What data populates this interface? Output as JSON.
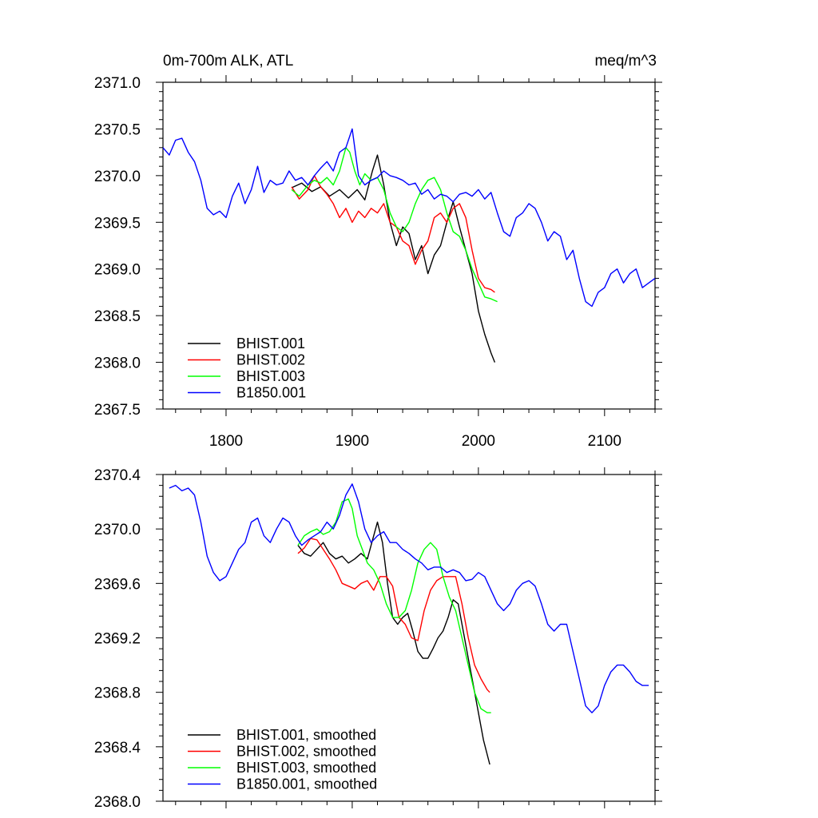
{
  "figure": {
    "left_title": "0m-700m ALK, ATL",
    "right_title": "meq/m^3"
  },
  "colors": {
    "BHIST.001": "#000000",
    "BHIST.002": "#ff0000",
    "BHIST.003": "#00ff00",
    "B1850.001": "#0000ff"
  },
  "chart_data": [
    {
      "type": "line",
      "title": "0m-700m ALK, ATL",
      "units": "meq/m^3",
      "xlim": [
        1750,
        2140
      ],
      "ylim": [
        2367.5,
        2371.0
      ],
      "x_ticks": [
        1800,
        1900,
        2000,
        2100
      ],
      "x_tick_labels": [
        "1800",
        "1900",
        "2000",
        "2100"
      ],
      "y_ticks": [
        2367.5,
        2368.0,
        2368.5,
        2369.0,
        2369.5,
        2370.0,
        2370.5,
        2371.0
      ],
      "y_tick_labels": [
        "2367.5",
        "2368.0",
        "2368.5",
        "2369.0",
        "2369.5",
        "2370.0",
        "2370.5",
        "2371.0"
      ],
      "legend_position": "lower-left",
      "series": [
        {
          "name": "BHIST.001",
          "color": "#000000",
          "x": [
            1852,
            1860,
            1868,
            1875,
            1882,
            1890,
            1897,
            1904,
            1910,
            1916,
            1920,
            1925,
            1930,
            1935,
            1940,
            1945,
            1950,
            1955,
            1960,
            1965,
            1970,
            1975,
            1980,
            1985,
            1990,
            1995,
            2000,
            2005,
            2010,
            2013
          ],
          "y": [
            2369.87,
            2369.92,
            2369.83,
            2369.88,
            2369.78,
            2369.85,
            2369.76,
            2369.85,
            2369.74,
            2370.05,
            2370.22,
            2369.9,
            2369.5,
            2369.25,
            2369.45,
            2369.38,
            2369.1,
            2369.25,
            2368.95,
            2369.15,
            2369.25,
            2369.5,
            2369.72,
            2369.45,
            2369.2,
            2368.95,
            2368.55,
            2368.3,
            2368.1,
            2368.0
          ]
        },
        {
          "name": "BHIST.002",
          "color": "#ff0000",
          "x": [
            1852,
            1858,
            1865,
            1870,
            1875,
            1880,
            1885,
            1890,
            1895,
            1900,
            1905,
            1910,
            1915,
            1920,
            1925,
            1930,
            1935,
            1940,
            1945,
            1950,
            1955,
            1960,
            1965,
            1970,
            1975,
            1980,
            1985,
            1990,
            1995,
            2000,
            2005,
            2010,
            2013
          ],
          "y": [
            2369.88,
            2369.75,
            2369.85,
            2370.0,
            2369.88,
            2369.8,
            2369.7,
            2369.55,
            2369.65,
            2369.5,
            2369.62,
            2369.55,
            2369.65,
            2369.6,
            2369.7,
            2369.5,
            2369.45,
            2369.3,
            2369.25,
            2369.05,
            2369.2,
            2369.3,
            2369.55,
            2369.6,
            2369.5,
            2369.65,
            2369.7,
            2369.55,
            2369.2,
            2368.9,
            2368.8,
            2368.78,
            2368.75
          ]
        },
        {
          "name": "BHIST.003",
          "color": "#00ff00",
          "x": [
            1852,
            1858,
            1865,
            1870,
            1875,
            1880,
            1885,
            1890,
            1895,
            1898,
            1902,
            1906,
            1910,
            1915,
            1920,
            1925,
            1930,
            1935,
            1940,
            1945,
            1950,
            1955,
            1960,
            1965,
            1970,
            1975,
            1980,
            1985,
            1990,
            1995,
            2000,
            2005,
            2010,
            2015
          ],
          "y": [
            2369.85,
            2369.78,
            2369.9,
            2369.95,
            2369.92,
            2369.98,
            2369.9,
            2370.05,
            2370.3,
            2370.25,
            2370.05,
            2369.9,
            2370.02,
            2369.95,
            2369.98,
            2369.85,
            2369.6,
            2369.45,
            2369.4,
            2369.5,
            2369.7,
            2369.85,
            2369.95,
            2369.98,
            2369.85,
            2369.6,
            2369.4,
            2369.35,
            2369.2,
            2369.0,
            2368.85,
            2368.7,
            2368.68,
            2368.65
          ]
        },
        {
          "name": "B1850.001",
          "color": "#0000ff",
          "x": [
            1750,
            1755,
            1760,
            1765,
            1770,
            1775,
            1780,
            1785,
            1790,
            1795,
            1800,
            1805,
            1810,
            1815,
            1820,
            1825,
            1830,
            1835,
            1840,
            1845,
            1850,
            1855,
            1860,
            1865,
            1870,
            1875,
            1880,
            1885,
            1890,
            1895,
            1900,
            1905,
            1910,
            1915,
            1920,
            1925,
            1930,
            1935,
            1940,
            1945,
            1950,
            1955,
            1960,
            1965,
            1970,
            1975,
            1980,
            1985,
            1990,
            1995,
            2000,
            2005,
            2010,
            2015,
            2020,
            2025,
            2030,
            2035,
            2040,
            2045,
            2050,
            2055,
            2060,
            2065,
            2070,
            2075,
            2080,
            2085,
            2090,
            2095,
            2100,
            2105,
            2110,
            2115,
            2120,
            2125,
            2130,
            2135,
            2140
          ],
          "y": [
            2370.3,
            2370.22,
            2370.38,
            2370.4,
            2370.25,
            2370.15,
            2369.95,
            2369.65,
            2369.58,
            2369.62,
            2369.55,
            2369.78,
            2369.92,
            2369.7,
            2369.85,
            2370.1,
            2369.82,
            2369.95,
            2369.9,
            2369.92,
            2370.05,
            2369.95,
            2369.98,
            2369.9,
            2370.0,
            2370.08,
            2370.15,
            2370.05,
            2370.25,
            2370.3,
            2370.5,
            2370.0,
            2369.9,
            2369.95,
            2369.98,
            2370.05,
            2370.0,
            2369.98,
            2369.95,
            2369.9,
            2369.92,
            2369.8,
            2369.85,
            2369.75,
            2369.8,
            2369.78,
            2369.72,
            2369.8,
            2369.82,
            2369.78,
            2369.85,
            2369.75,
            2369.82,
            2369.6,
            2369.4,
            2369.35,
            2369.55,
            2369.6,
            2369.7,
            2369.65,
            2369.5,
            2369.3,
            2369.4,
            2369.35,
            2369.1,
            2369.2,
            2368.9,
            2368.65,
            2368.6,
            2368.75,
            2368.8,
            2368.95,
            2369.0,
            2368.85,
            2368.95,
            2369.0,
            2368.8,
            2368.85,
            2368.9
          ]
        }
      ]
    },
    {
      "type": "line",
      "title": "",
      "xlim": [
        1750,
        2140
      ],
      "ylim": [
        2368.0,
        2370.4
      ],
      "x_ticks": [
        1800,
        1900,
        2000,
        2100
      ],
      "x_tick_labels": [],
      "y_ticks": [
        2368.0,
        2368.4,
        2368.8,
        2369.2,
        2369.6,
        2370.0,
        2370.4
      ],
      "y_tick_labels": [
        "2368.0",
        "2368.4",
        "2368.8",
        "2369.2",
        "2369.6",
        "2370.0",
        "2370.4"
      ],
      "legend_position": "lower-left",
      "series": [
        {
          "name": "BHIST.001, smoothed",
          "color": "#000000",
          "x": [
            1857,
            1862,
            1867,
            1872,
            1877,
            1882,
            1887,
            1892,
            1897,
            1902,
            1907,
            1912,
            1917,
            1920,
            1924,
            1928,
            1932,
            1936,
            1940,
            1944,
            1948,
            1952,
            1956,
            1960,
            1964,
            1968,
            1972,
            1976,
            1980,
            1984,
            1988,
            1992,
            1996,
            2000,
            2004,
            2009
          ],
          "y": [
            2369.88,
            2369.82,
            2369.8,
            2369.85,
            2369.9,
            2369.82,
            2369.78,
            2369.8,
            2369.75,
            2369.78,
            2369.82,
            2369.78,
            2369.95,
            2370.05,
            2369.9,
            2369.6,
            2369.35,
            2369.3,
            2369.35,
            2369.38,
            2369.25,
            2369.1,
            2369.05,
            2369.05,
            2369.12,
            2369.2,
            2369.25,
            2369.35,
            2369.48,
            2369.45,
            2369.25,
            2369.05,
            2368.85,
            2368.65,
            2368.45,
            2368.27
          ]
        },
        {
          "name": "BHIST.002, smoothed",
          "color": "#ff0000",
          "x": [
            1857,
            1862,
            1867,
            1872,
            1877,
            1882,
            1887,
            1892,
            1897,
            1902,
            1907,
            1912,
            1917,
            1922,
            1927,
            1932,
            1937,
            1942,
            1947,
            1952,
            1957,
            1962,
            1967,
            1972,
            1977,
            1982,
            1987,
            1992,
            1997,
            2002,
            2007,
            2009
          ],
          "y": [
            2369.82,
            2369.86,
            2369.93,
            2369.92,
            2369.85,
            2369.78,
            2369.7,
            2369.6,
            2369.58,
            2369.56,
            2369.6,
            2369.62,
            2369.55,
            2369.65,
            2369.65,
            2369.58,
            2369.35,
            2369.3,
            2369.2,
            2369.18,
            2369.4,
            2369.55,
            2369.62,
            2369.65,
            2369.65,
            2369.65,
            2369.45,
            2369.2,
            2369.0,
            2368.9,
            2368.82,
            2368.8
          ]
        },
        {
          "name": "BHIST.003, smoothed",
          "color": "#00ff00",
          "x": [
            1857,
            1862,
            1867,
            1872,
            1877,
            1882,
            1887,
            1892,
            1897,
            1900,
            1904,
            1908,
            1912,
            1917,
            1922,
            1927,
            1932,
            1937,
            1942,
            1947,
            1952,
            1957,
            1962,
            1967,
            1972,
            1977,
            1982,
            1987,
            1992,
            1997,
            2002,
            2007,
            2010
          ],
          "y": [
            2369.88,
            2369.95,
            2369.98,
            2370.0,
            2369.96,
            2369.98,
            2370.05,
            2370.2,
            2370.22,
            2370.15,
            2369.95,
            2369.85,
            2369.75,
            2369.7,
            2369.6,
            2369.45,
            2369.35,
            2369.35,
            2369.4,
            2369.55,
            2369.75,
            2369.85,
            2369.9,
            2369.85,
            2369.65,
            2369.5,
            2369.4,
            2369.2,
            2369.0,
            2368.8,
            2368.68,
            2368.65,
            2368.65
          ]
        },
        {
          "name": "B1850.001, smoothed",
          "color": "#0000ff",
          "x": [
            1755,
            1760,
            1765,
            1770,
            1775,
            1780,
            1785,
            1790,
            1795,
            1800,
            1805,
            1810,
            1815,
            1820,
            1825,
            1830,
            1835,
            1840,
            1845,
            1850,
            1855,
            1860,
            1865,
            1870,
            1875,
            1880,
            1885,
            1890,
            1895,
            1900,
            1905,
            1910,
            1915,
            1920,
            1925,
            1930,
            1935,
            1940,
            1945,
            1950,
            1955,
            1960,
            1965,
            1970,
            1975,
            1980,
            1985,
            1990,
            1995,
            2000,
            2005,
            2010,
            2015,
            2020,
            2025,
            2030,
            2035,
            2040,
            2045,
            2050,
            2055,
            2060,
            2065,
            2070,
            2075,
            2080,
            2085,
            2090,
            2095,
            2100,
            2105,
            2110,
            2115,
            2120,
            2125,
            2130,
            2135
          ],
          "y": [
            2370.3,
            2370.32,
            2370.28,
            2370.3,
            2370.25,
            2370.05,
            2369.8,
            2369.68,
            2369.62,
            2369.65,
            2369.75,
            2369.85,
            2369.9,
            2370.05,
            2370.08,
            2369.95,
            2369.9,
            2370.0,
            2370.08,
            2370.05,
            2369.95,
            2369.88,
            2369.92,
            2369.95,
            2369.98,
            2370.05,
            2370.0,
            2370.1,
            2370.25,
            2370.33,
            2370.2,
            2370.0,
            2369.9,
            2369.95,
            2369.98,
            2369.9,
            2369.9,
            2369.85,
            2369.82,
            2369.78,
            2369.75,
            2369.7,
            2369.72,
            2369.72,
            2369.68,
            2369.7,
            2369.68,
            2369.62,
            2369.63,
            2369.68,
            2369.65,
            2369.55,
            2369.45,
            2369.4,
            2369.45,
            2369.55,
            2369.6,
            2369.62,
            2369.58,
            2369.45,
            2369.3,
            2369.25,
            2369.3,
            2369.3,
            2369.1,
            2368.9,
            2368.7,
            2368.65,
            2368.7,
            2368.85,
            2368.95,
            2369.0,
            2369.0,
            2368.95,
            2368.88,
            2368.85,
            2368.85
          ]
        }
      ]
    }
  ]
}
